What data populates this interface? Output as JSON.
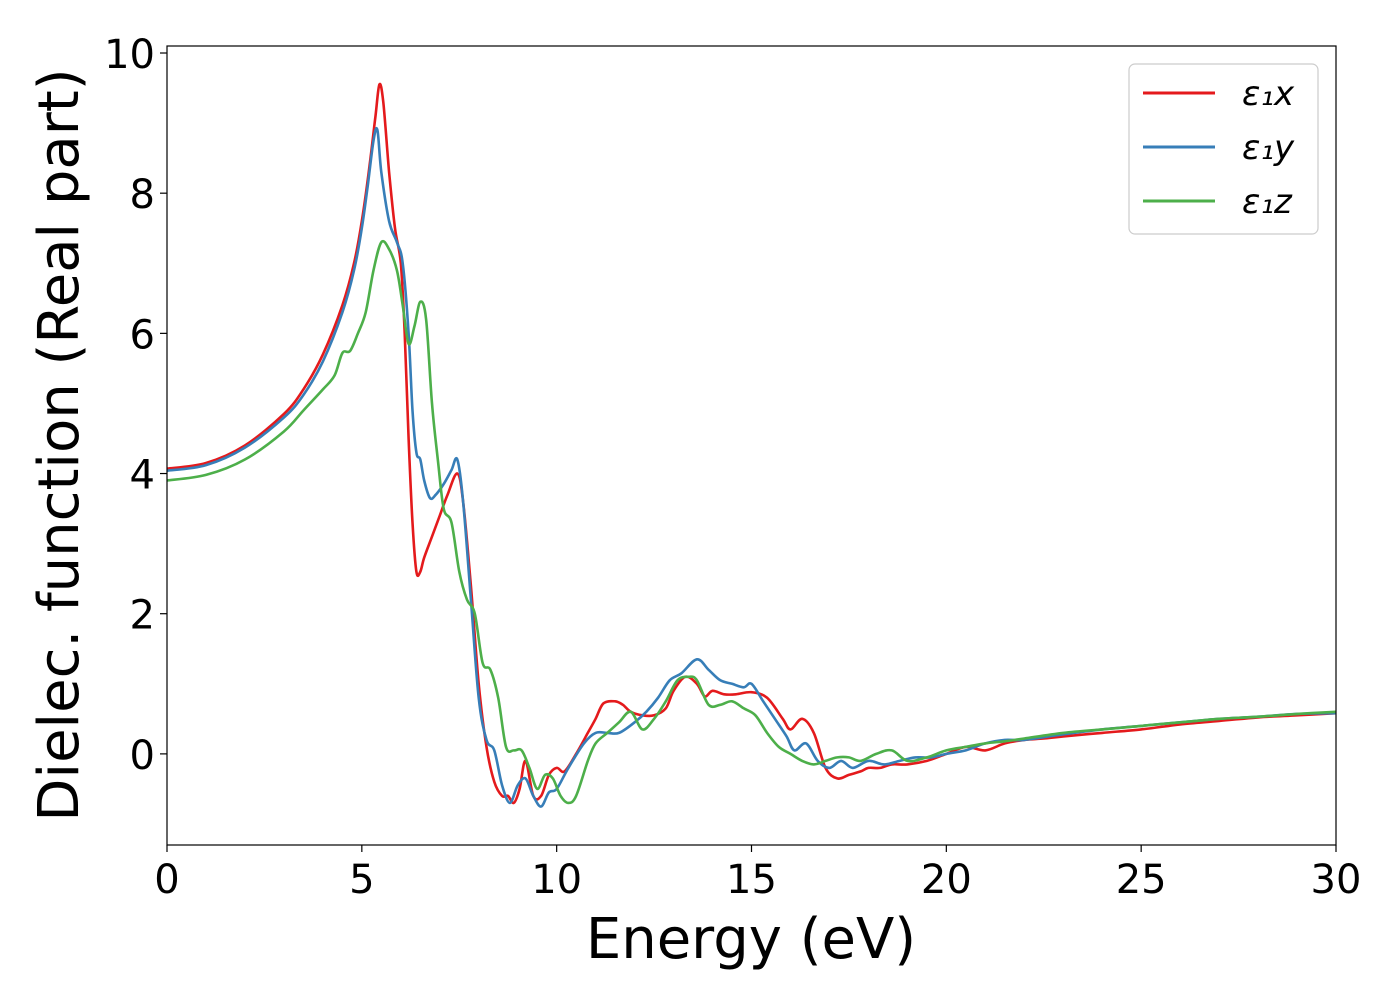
{
  "chart_data": {
    "type": "line",
    "title": "",
    "xlabel": "Energy (eV)",
    "ylabel": "Dielec. function (Real part)",
    "xlim": [
      0,
      30
    ],
    "ylim": [
      -1.3,
      10.1
    ],
    "xticks": [
      0,
      5,
      10,
      15,
      20,
      25,
      30
    ],
    "yticks": [
      0,
      2,
      4,
      6,
      8,
      10
    ],
    "grid": false,
    "legend_position": "top-right",
    "series": [
      {
        "name": "ε₁x",
        "color": "#e41a1c",
        "x": [
          0,
          1,
          2,
          3,
          3.5,
          4,
          4.5,
          4.8,
          5.0,
          5.2,
          5.35,
          5.45,
          5.55,
          5.7,
          5.85,
          6.0,
          6.1,
          6.2,
          6.3,
          6.4,
          6.5,
          6.6,
          6.8,
          7.0,
          7.2,
          7.45,
          7.6,
          7.8,
          8.0,
          8.2,
          8.4,
          8.6,
          8.75,
          8.9,
          9.05,
          9.2,
          9.4,
          9.6,
          9.8,
          10.0,
          10.2,
          10.5,
          10.8,
          11.0,
          11.2,
          11.5,
          11.7,
          11.9,
          12.2,
          12.5,
          12.8,
          13.0,
          13.3,
          13.6,
          13.8,
          14.0,
          14.3,
          14.6,
          15.0,
          15.4,
          15.8,
          16.0,
          16.3,
          16.6,
          16.9,
          17.2,
          17.5,
          17.8,
          18.0,
          18.3,
          18.6,
          19.0,
          19.5,
          20.0,
          20.5,
          21.0,
          21.5,
          22.0,
          22.5,
          23.0,
          24.0,
          25.0,
          26.0,
          27.0,
          28.0,
          29.0,
          30.0
        ],
        "y": [
          4.07,
          4.15,
          4.4,
          4.85,
          5.2,
          5.7,
          6.4,
          7.0,
          7.6,
          8.4,
          9.1,
          9.55,
          9.3,
          8.3,
          7.5,
          7.0,
          6.0,
          4.5,
          3.3,
          2.6,
          2.6,
          2.8,
          3.1,
          3.4,
          3.7,
          4.0,
          3.6,
          2.4,
          1.0,
          0.1,
          -0.4,
          -0.6,
          -0.6,
          -0.7,
          -0.5,
          -0.1,
          -0.6,
          -0.6,
          -0.3,
          -0.2,
          -0.25,
          0.0,
          0.3,
          0.5,
          0.72,
          0.75,
          0.7,
          0.6,
          0.55,
          0.55,
          0.65,
          0.9,
          1.1,
          1.0,
          0.82,
          0.9,
          0.85,
          0.85,
          0.88,
          0.8,
          0.5,
          0.35,
          0.5,
          0.3,
          -0.2,
          -0.35,
          -0.3,
          -0.25,
          -0.2,
          -0.2,
          -0.15,
          -0.15,
          -0.1,
          0.0,
          0.1,
          0.05,
          0.15,
          0.2,
          0.22,
          0.25,
          0.3,
          0.35,
          0.42,
          0.47,
          0.52,
          0.55,
          0.58
        ]
      },
      {
        "name": "ε₁y",
        "color": "#377eb8",
        "x": [
          0,
          1,
          2,
          3,
          3.5,
          4,
          4.5,
          4.8,
          5.0,
          5.15,
          5.3,
          5.4,
          5.5,
          5.7,
          5.9,
          6.05,
          6.2,
          6.3,
          6.4,
          6.5,
          6.6,
          6.75,
          6.9,
          7.1,
          7.3,
          7.45,
          7.6,
          7.8,
          8.0,
          8.2,
          8.4,
          8.6,
          8.8,
          9.0,
          9.2,
          9.4,
          9.6,
          9.8,
          10.0,
          10.3,
          10.7,
          11.0,
          11.3,
          11.6,
          12.0,
          12.3,
          12.6,
          12.9,
          13.2,
          13.6,
          13.9,
          14.2,
          14.5,
          14.8,
          15.0,
          15.3,
          15.6,
          15.9,
          16.1,
          16.4,
          16.7,
          17.0,
          17.3,
          17.6,
          18.0,
          18.4,
          18.8,
          19.2,
          19.6,
          20.0,
          20.5,
          21.0,
          21.5,
          22.0,
          23.0,
          24.0,
          25.0,
          26.0,
          27.0,
          28.0,
          29.0,
          30.0
        ],
        "y": [
          4.04,
          4.12,
          4.37,
          4.8,
          5.12,
          5.6,
          6.3,
          6.9,
          7.5,
          8.1,
          8.75,
          8.9,
          8.3,
          7.6,
          7.3,
          7.0,
          6.0,
          4.9,
          4.3,
          4.2,
          3.9,
          3.65,
          3.7,
          3.85,
          4.05,
          4.2,
          3.6,
          2.2,
          0.8,
          0.2,
          0.05,
          -0.45,
          -0.7,
          -0.45,
          -0.35,
          -0.6,
          -0.75,
          -0.55,
          -0.5,
          -0.2,
          0.15,
          0.3,
          0.3,
          0.3,
          0.45,
          0.6,
          0.8,
          1.05,
          1.15,
          1.35,
          1.2,
          1.05,
          1.0,
          0.95,
          1.0,
          0.75,
          0.5,
          0.25,
          0.05,
          0.15,
          -0.1,
          -0.2,
          -0.1,
          -0.2,
          -0.1,
          -0.15,
          -0.1,
          -0.05,
          -0.05,
          0.0,
          0.05,
          0.15,
          0.2,
          0.2,
          0.28,
          0.35,
          0.4,
          0.45,
          0.5,
          0.53,
          0.57,
          0.58
        ]
      },
      {
        "name": "ε₁z",
        "color": "#4daf4a",
        "x": [
          0,
          1,
          2,
          3,
          3.5,
          4,
          4.3,
          4.5,
          4.7,
          4.9,
          5.1,
          5.3,
          5.5,
          5.7,
          5.9,
          6.05,
          6.2,
          6.35,
          6.5,
          6.65,
          6.8,
          6.95,
          7.1,
          7.3,
          7.5,
          7.7,
          7.9,
          8.1,
          8.3,
          8.5,
          8.7,
          8.9,
          9.1,
          9.3,
          9.5,
          9.7,
          9.9,
          10.1,
          10.3,
          10.5,
          10.8,
          11.0,
          11.3,
          11.6,
          11.9,
          12.2,
          12.5,
          12.8,
          13.1,
          13.4,
          13.6,
          13.9,
          14.2,
          14.5,
          14.8,
          15.1,
          15.4,
          15.7,
          16.0,
          16.3,
          16.6,
          16.9,
          17.2,
          17.5,
          17.8,
          18.2,
          18.6,
          19.0,
          19.5,
          20.0,
          20.5,
          21.0,
          21.5,
          22.0,
          23.0,
          24.0,
          25.0,
          26.0,
          27.0,
          28.0,
          29.0,
          30.0
        ],
        "y": [
          3.9,
          3.98,
          4.2,
          4.6,
          4.9,
          5.2,
          5.4,
          5.72,
          5.75,
          6.0,
          6.3,
          6.9,
          7.3,
          7.2,
          6.9,
          6.4,
          5.85,
          6.1,
          6.45,
          6.2,
          5.0,
          4.2,
          3.5,
          3.3,
          2.6,
          2.2,
          2.0,
          1.3,
          1.2,
          0.8,
          0.1,
          0.05,
          0.05,
          -0.2,
          -0.5,
          -0.3,
          -0.35,
          -0.6,
          -0.7,
          -0.6,
          -0.1,
          0.15,
          0.3,
          0.45,
          0.6,
          0.35,
          0.5,
          0.75,
          1.05,
          1.1,
          1.05,
          0.7,
          0.7,
          0.75,
          0.65,
          0.55,
          0.3,
          0.1,
          0.0,
          -0.1,
          -0.15,
          -0.1,
          -0.05,
          -0.05,
          -0.1,
          0.0,
          0.05,
          -0.1,
          -0.05,
          0.05,
          0.1,
          0.15,
          0.18,
          0.22,
          0.3,
          0.35,
          0.4,
          0.45,
          0.5,
          0.53,
          0.57,
          0.6
        ]
      }
    ]
  }
}
